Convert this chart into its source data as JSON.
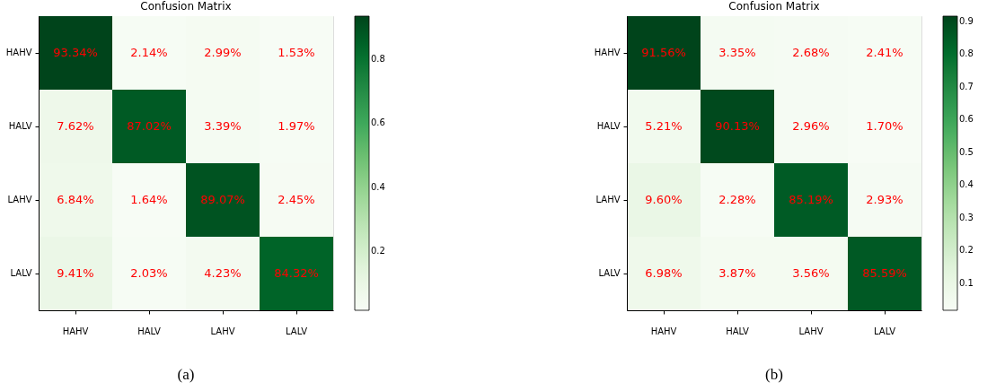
{
  "chart_data": [
    {
      "type": "heatmap",
      "title": "Confusion Matrix",
      "categories": [
        "HAHV",
        "HALV",
        "LAHV",
        "LALV"
      ],
      "y_categories": [
        "HAHV",
        "HALV",
        "LAHV",
        "LALV"
      ],
      "cells": [
        [
          0.9334,
          0.0214,
          0.0299,
          0.0153
        ],
        [
          0.0762,
          0.8702,
          0.0339,
          0.0197
        ],
        [
          0.0684,
          0.0164,
          0.8907,
          0.0245
        ],
        [
          0.0941,
          0.0203,
          0.0423,
          0.8432
        ]
      ],
      "cell_labels": [
        [
          "93.34%",
          "2.14%",
          "2.99%",
          "1.53%"
        ],
        [
          "7.62%",
          "87.02%",
          "3.39%",
          "1.97%"
        ],
        [
          "6.84%",
          "1.64%",
          "89.07%",
          "2.45%"
        ],
        [
          "9.41%",
          "2.03%",
          "4.23%",
          "84.32%"
        ]
      ],
      "clim": [
        0.0153,
        0.9334
      ],
      "cticks": [
        0.2,
        0.4,
        0.6,
        0.8
      ],
      "annotations": [
        "(a)"
      ]
    },
    {
      "type": "heatmap",
      "title": "Confusion Matrix",
      "categories": [
        "HAHV",
        "HALV",
        "LAHV",
        "LALV"
      ],
      "y_categories": [
        "HAHV",
        "HALV",
        "LAHV",
        "LALV"
      ],
      "cells": [
        [
          0.9156,
          0.0335,
          0.0268,
          0.0241
        ],
        [
          0.0521,
          0.9013,
          0.0296,
          0.017
        ],
        [
          0.096,
          0.0228,
          0.8519,
          0.0293
        ],
        [
          0.0698,
          0.0387,
          0.0356,
          0.8559
        ]
      ],
      "cell_labels": [
        [
          "91.56%",
          "3.35%",
          "2.68%",
          "2.41%"
        ],
        [
          "5.21%",
          "90.13%",
          "2.96%",
          "1.70%"
        ],
        [
          "9.60%",
          "2.28%",
          "85.19%",
          "2.93%"
        ],
        [
          "6.98%",
          "3.87%",
          "3.56%",
          "85.59%"
        ]
      ],
      "clim": [
        0.017,
        0.9156
      ],
      "cticks": [
        0.1,
        0.2,
        0.3,
        0.4,
        0.5,
        0.6,
        0.7,
        0.8,
        0.9
      ],
      "annotations": [
        "(b)"
      ]
    }
  ]
}
